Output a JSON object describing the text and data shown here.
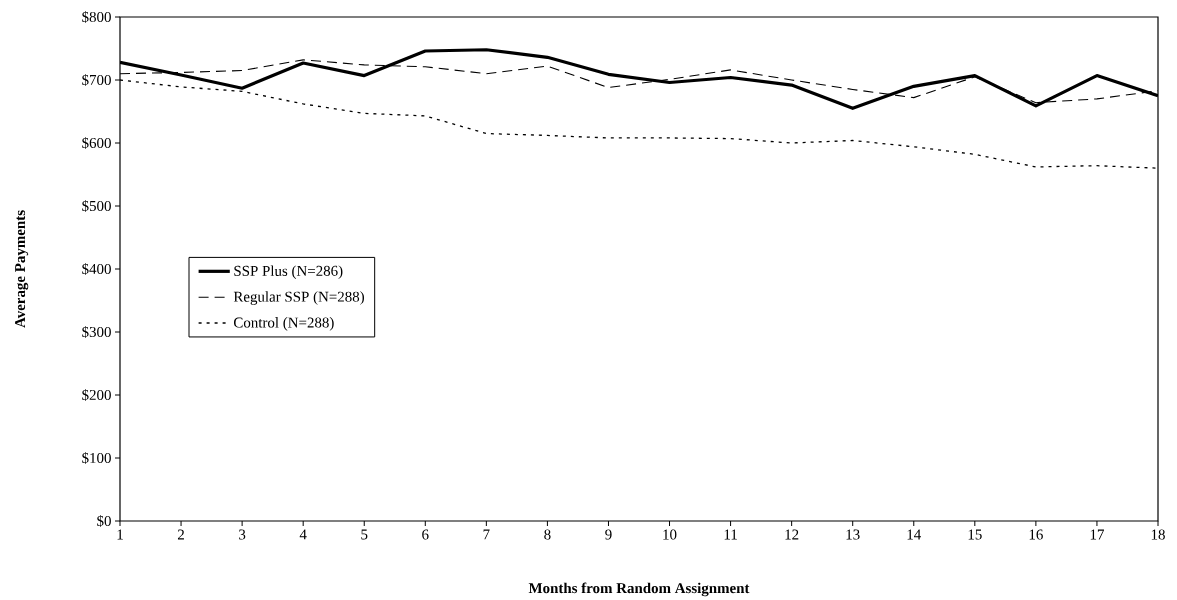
{
  "chart_data": {
    "type": "line",
    "xlabel": "Months from Random Assignment",
    "ylabel": "Average Payments",
    "x": [
      1,
      2,
      3,
      4,
      5,
      6,
      7,
      8,
      9,
      10,
      11,
      12,
      13,
      14,
      15,
      16,
      17,
      18
    ],
    "series": [
      {
        "name": "SSP Plus (N=286)",
        "color": "#000000",
        "line_style": "solid",
        "values": [
          728,
          708,
          687,
          727,
          707,
          746,
          748,
          736,
          709,
          696,
          704,
          692,
          655,
          690,
          707,
          659,
          707,
          675
        ]
      },
      {
        "name": "Regular SSP (N=288)",
        "color": "#000000",
        "line_style": "dashed",
        "values": [
          710,
          712,
          715,
          732,
          724,
          721,
          710,
          722,
          688,
          701,
          716,
          700,
          685,
          672,
          705,
          664,
          670,
          683
        ]
      },
      {
        "name": "Control (N=288)",
        "color": "#000000",
        "line_style": "dotted",
        "values": [
          700,
          689,
          682,
          662,
          647,
          643,
          615,
          612,
          608,
          608,
          607,
          600,
          604,
          594,
          582,
          562,
          564,
          560
        ]
      }
    ],
    "xlim": [
      1,
      18
    ],
    "xticks": [
      1,
      2,
      3,
      4,
      5,
      6,
      7,
      8,
      9,
      10,
      11,
      12,
      13,
      14,
      15,
      16,
      17,
      18
    ],
    "ylim": [
      0,
      800
    ],
    "yticks": [
      {
        "value": 0,
        "label": "$0"
      },
      {
        "value": 100,
        "label": "$100"
      },
      {
        "value": 200,
        "label": "$200"
      },
      {
        "value": 300,
        "label": "$300"
      },
      {
        "value": 400,
        "label": "$400"
      },
      {
        "value": 500,
        "label": "$500"
      },
      {
        "value": 600,
        "label": "$600"
      },
      {
        "value": 700,
        "label": "$700"
      },
      {
        "value": 800,
        "label": "$800"
      }
    ],
    "grid": false,
    "legend": "center left"
  }
}
